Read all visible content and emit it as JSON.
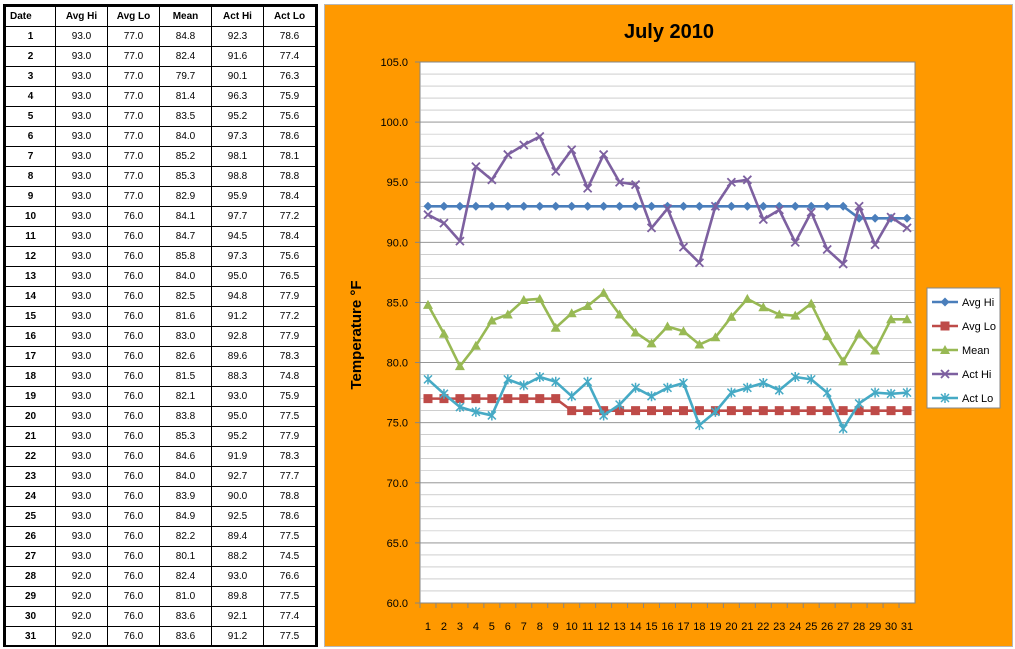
{
  "table": {
    "headers": [
      "Date",
      "Avg Hi",
      "Avg Lo",
      "Mean",
      "Act Hi",
      "Act Lo"
    ],
    "rows": [
      [
        "1",
        "93.0",
        "77.0",
        "84.8",
        "92.3",
        "78.6"
      ],
      [
        "2",
        "93.0",
        "77.0",
        "82.4",
        "91.6",
        "77.4"
      ],
      [
        "3",
        "93.0",
        "77.0",
        "79.7",
        "90.1",
        "76.3"
      ],
      [
        "4",
        "93.0",
        "77.0",
        "81.4",
        "96.3",
        "75.9"
      ],
      [
        "5",
        "93.0",
        "77.0",
        "83.5",
        "95.2",
        "75.6"
      ],
      [
        "6",
        "93.0",
        "77.0",
        "84.0",
        "97.3",
        "78.6"
      ],
      [
        "7",
        "93.0",
        "77.0",
        "85.2",
        "98.1",
        "78.1"
      ],
      [
        "8",
        "93.0",
        "77.0",
        "85.3",
        "98.8",
        "78.8"
      ],
      [
        "9",
        "93.0",
        "77.0",
        "82.9",
        "95.9",
        "78.4"
      ],
      [
        "10",
        "93.0",
        "76.0",
        "84.1",
        "97.7",
        "77.2"
      ],
      [
        "11",
        "93.0",
        "76.0",
        "84.7",
        "94.5",
        "78.4"
      ],
      [
        "12",
        "93.0",
        "76.0",
        "85.8",
        "97.3",
        "75.6"
      ],
      [
        "13",
        "93.0",
        "76.0",
        "84.0",
        "95.0",
        "76.5"
      ],
      [
        "14",
        "93.0",
        "76.0",
        "82.5",
        "94.8",
        "77.9"
      ],
      [
        "15",
        "93.0",
        "76.0",
        "81.6",
        "91.2",
        "77.2"
      ],
      [
        "16",
        "93.0",
        "76.0",
        "83.0",
        "92.8",
        "77.9"
      ],
      [
        "17",
        "93.0",
        "76.0",
        "82.6",
        "89.6",
        "78.3"
      ],
      [
        "18",
        "93.0",
        "76.0",
        "81.5",
        "88.3",
        "74.8"
      ],
      [
        "19",
        "93.0",
        "76.0",
        "82.1",
        "93.0",
        "75.9"
      ],
      [
        "20",
        "93.0",
        "76.0",
        "83.8",
        "95.0",
        "77.5"
      ],
      [
        "21",
        "93.0",
        "76.0",
        "85.3",
        "95.2",
        "77.9"
      ],
      [
        "22",
        "93.0",
        "76.0",
        "84.6",
        "91.9",
        "78.3"
      ],
      [
        "23",
        "93.0",
        "76.0",
        "84.0",
        "92.7",
        "77.7"
      ],
      [
        "24",
        "93.0",
        "76.0",
        "83.9",
        "90.0",
        "78.8"
      ],
      [
        "25",
        "93.0",
        "76.0",
        "84.9",
        "92.5",
        "78.6"
      ],
      [
        "26",
        "93.0",
        "76.0",
        "82.2",
        "89.4",
        "77.5"
      ],
      [
        "27",
        "93.0",
        "76.0",
        "80.1",
        "88.2",
        "74.5"
      ],
      [
        "28",
        "92.0",
        "76.0",
        "82.4",
        "93.0",
        "76.6"
      ],
      [
        "29",
        "92.0",
        "76.0",
        "81.0",
        "89.8",
        "77.5"
      ],
      [
        "30",
        "92.0",
        "76.0",
        "83.6",
        "92.1",
        "77.4"
      ],
      [
        "31",
        "92.0",
        "76.0",
        "83.6",
        "91.2",
        "77.5"
      ]
    ]
  },
  "chart_data": {
    "type": "line",
    "title": "July 2010",
    "xlabel": "",
    "ylabel": "Temperature °F",
    "x": [
      1,
      2,
      3,
      4,
      5,
      6,
      7,
      8,
      9,
      10,
      11,
      12,
      13,
      14,
      15,
      16,
      17,
      18,
      19,
      20,
      21,
      22,
      23,
      24,
      25,
      26,
      27,
      28,
      29,
      30,
      31
    ],
    "ylim": [
      60,
      105
    ],
    "yticks": [
      "60.0",
      "65.0",
      "70.0",
      "75.0",
      "80.0",
      "85.0",
      "90.0",
      "95.0",
      "100.0",
      "105.0"
    ],
    "grid": true,
    "legend": "right",
    "background": "#ff9900",
    "series": [
      {
        "name": "Avg Hi",
        "color": "#4a7ebb",
        "marker": "diamond",
        "values": [
          93,
          93,
          93,
          93,
          93,
          93,
          93,
          93,
          93,
          93,
          93,
          93,
          93,
          93,
          93,
          93,
          93,
          93,
          93,
          93,
          93,
          93,
          93,
          93,
          93,
          93,
          93,
          92,
          92,
          92,
          92
        ]
      },
      {
        "name": "Avg Lo",
        "color": "#be4b48",
        "marker": "square",
        "values": [
          77,
          77,
          77,
          77,
          77,
          77,
          77,
          77,
          77,
          76,
          76,
          76,
          76,
          76,
          76,
          76,
          76,
          76,
          76,
          76,
          76,
          76,
          76,
          76,
          76,
          76,
          76,
          76,
          76,
          76,
          76
        ]
      },
      {
        "name": "Mean",
        "color": "#98b954",
        "marker": "triangle",
        "values": [
          84.8,
          82.4,
          79.7,
          81.4,
          83.5,
          84.0,
          85.2,
          85.3,
          82.9,
          84.1,
          84.7,
          85.8,
          84.0,
          82.5,
          81.6,
          83.0,
          82.6,
          81.5,
          82.1,
          83.8,
          85.3,
          84.6,
          84.0,
          83.9,
          84.9,
          82.2,
          80.1,
          82.4,
          81.0,
          83.6,
          83.6
        ]
      },
      {
        "name": "Act Hi",
        "color": "#7d60a0",
        "marker": "x",
        "values": [
          92.3,
          91.6,
          90.1,
          96.3,
          95.2,
          97.3,
          98.1,
          98.8,
          95.9,
          97.7,
          94.5,
          97.3,
          95.0,
          94.8,
          91.2,
          92.8,
          89.6,
          88.3,
          93.0,
          95.0,
          95.2,
          91.9,
          92.7,
          90.0,
          92.5,
          89.4,
          88.2,
          93.0,
          89.8,
          92.1,
          91.2
        ]
      },
      {
        "name": "Act Lo",
        "color": "#46aac5",
        "marker": "star",
        "values": [
          78.6,
          77.4,
          76.3,
          75.9,
          75.6,
          78.6,
          78.1,
          78.8,
          78.4,
          77.2,
          78.4,
          75.6,
          76.5,
          77.9,
          77.2,
          77.9,
          78.3,
          74.8,
          75.9,
          77.5,
          77.9,
          78.3,
          77.7,
          78.8,
          78.6,
          77.5,
          74.5,
          76.6,
          77.5,
          77.4,
          77.5
        ]
      }
    ]
  }
}
